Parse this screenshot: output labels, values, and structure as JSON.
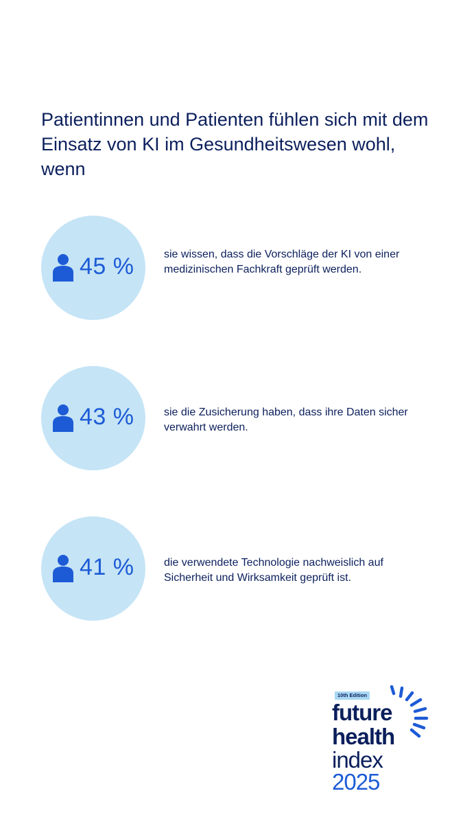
{
  "headline": "Patientinnen und Patienten fühlen sich mit dem Einsatz von KI im Gesundheitswesen wohl, wenn",
  "chart_data": {
    "type": "table",
    "title": "Patientinnen und Patienten fühlen sich mit dem Einsatz von KI im Gesundheitswesen wohl, wenn",
    "unit": "%",
    "rows": [
      {
        "value": 45,
        "value_label": "45 %",
        "label": "sie wissen, dass die Vorschläge der KI von einer medizinischen Fachkraft geprüft werden."
      },
      {
        "value": 43,
        "value_label": "43 %",
        "label": "sie die Zusicherung haben, dass ihre Daten sicher verwahrt werden."
      },
      {
        "value": 41,
        "value_label": "41 %",
        "label": "die verwendete Technologie nachweislich auf Sicherheit und Wirksamkeit geprüft ist."
      }
    ]
  },
  "logo": {
    "edition": "10th Edition",
    "line1": "future",
    "line2": "health",
    "line3": "index",
    "line4": "2025"
  },
  "colors": {
    "navy": "#0b1f5c",
    "accent_blue": "#1d5bd6",
    "circle_fill": "#c5e4f6",
    "edition_badge": "#a8d8f3"
  },
  "icons": {
    "stat_icon": "person-icon",
    "logo_mark": "sunburst-rays-icon"
  }
}
